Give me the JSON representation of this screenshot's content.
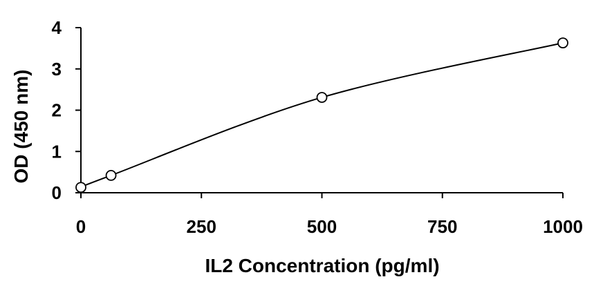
{
  "chart_data": {
    "type": "scatter",
    "title": "",
    "xlabel": "IL2 Concentration (pg/ml)",
    "ylabel": "OD (450 nm)",
    "xlim": [
      0,
      1000
    ],
    "ylim": [
      0,
      4
    ],
    "x_ticks": [
      0,
      250,
      500,
      750,
      1000
    ],
    "y_ticks": [
      0,
      1,
      2,
      3,
      4
    ],
    "x_tick_labels": [
      "0",
      "250",
      "500",
      "750",
      "1000"
    ],
    "y_tick_labels": [
      "0",
      "1",
      "2",
      "3",
      "4"
    ],
    "grid": false,
    "legend": "none",
    "series": [
      {
        "marker": "open-circle",
        "fit": "smooth-curve",
        "x": [
          0,
          62.5,
          500,
          1000
        ],
        "y": [
          0.13,
          0.42,
          2.31,
          3.63
        ]
      }
    ],
    "colors": {
      "line": "#000000",
      "axis": "#000000",
      "background": "#ffffff"
    }
  }
}
